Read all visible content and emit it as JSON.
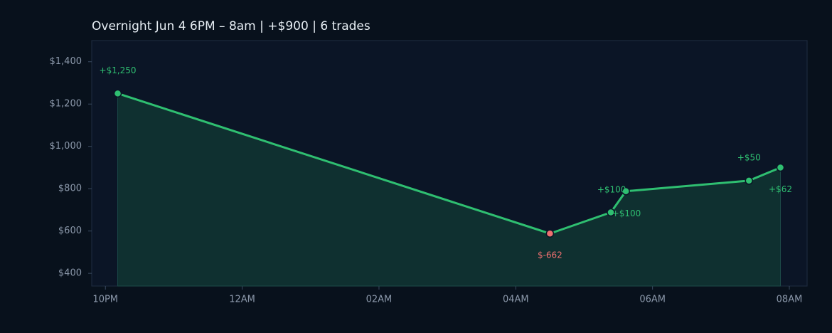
{
  "chart_data": {
    "type": "line",
    "title": "Overnight  Jun 4 6PM – 8am  |  +$900  |  6 trades",
    "x": [
      22.18,
      28.5,
      29.39,
      29.61,
      31.41,
      31.87
    ],
    "values": [
      1250,
      588,
      688,
      788,
      838,
      900
    ],
    "pnl": [
      1250,
      -662,
      100,
      100,
      50,
      62
    ],
    "pnl_labels": [
      "+$1,250",
      "$-662",
      "+$100",
      "+$100",
      "+$50",
      "+$62"
    ],
    "color": "#2fbf71",
    "loss_color": "#f07070",
    "area_color": "#0f3030",
    "xlim": [
      21.8,
      32.26
    ],
    "xticks": [
      {
        "value": 22,
        "label": "10PM"
      },
      {
        "value": 24,
        "label": "12AM"
      },
      {
        "value": 26,
        "label": "02AM"
      },
      {
        "value": 28,
        "label": "04AM"
      },
      {
        "value": 30,
        "label": "06AM"
      },
      {
        "value": 32,
        "label": "08AM"
      }
    ],
    "ylim": [
      340,
      1500
    ],
    "yticks": [
      {
        "value": 400,
        "label": "$400"
      },
      {
        "value": 600,
        "label": "$600"
      },
      {
        "value": 800,
        "label": "$800"
      },
      {
        "value": 1000,
        "label": "$1,000"
      },
      {
        "value": 1200,
        "label": "$1,200"
      },
      {
        "value": 1400,
        "label": "$1,400"
      }
    ]
  }
}
